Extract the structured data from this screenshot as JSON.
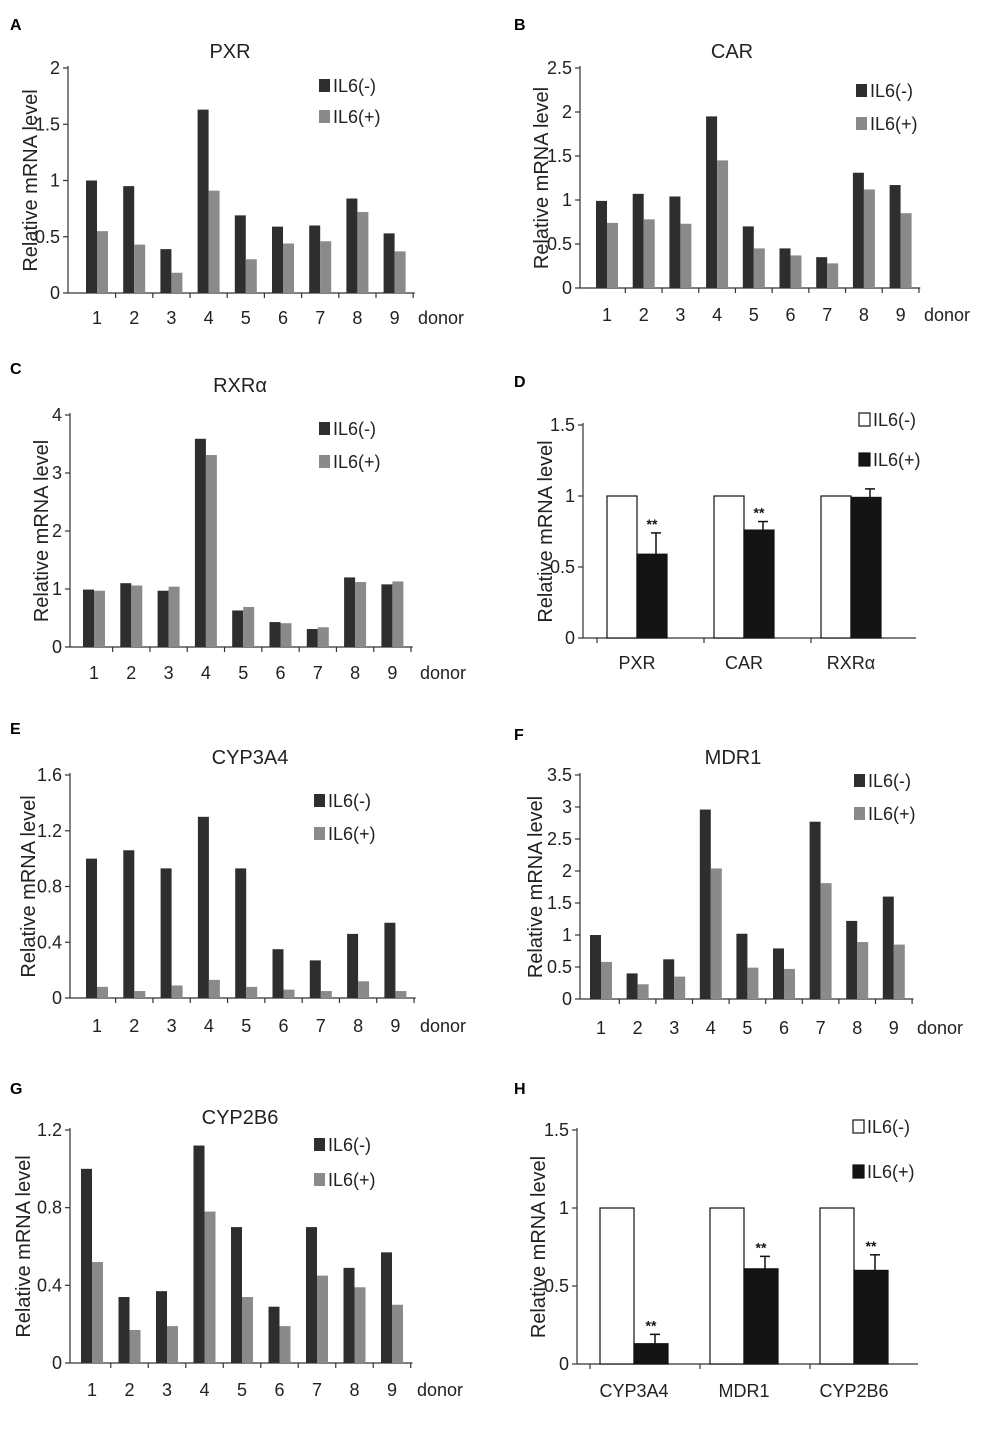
{
  "colors": {
    "il6_minus": "#2e2e2e",
    "il6_plus": "#8a8a8a",
    "summary_minus": "#ffffff",
    "summary_plus": "#141414",
    "axis": "#333333"
  },
  "chart_data": [
    {
      "panel": "A",
      "type": "bar",
      "title": "PXR",
      "xlabel": "donor",
      "ylabel": "Relative mRNA level",
      "ylim": [
        0,
        2
      ],
      "yticks": [
        "0",
        "0.5",
        "1",
        "1.5",
        "2"
      ],
      "categories": [
        "1",
        "2",
        "3",
        "4",
        "5",
        "6",
        "7",
        "8",
        "9"
      ],
      "series": [
        {
          "name": "IL6(-)",
          "values": [
            1.0,
            0.95,
            0.39,
            1.63,
            0.69,
            0.59,
            0.6,
            0.84,
            0.53
          ]
        },
        {
          "name": "IL6(+)",
          "values": [
            0.55,
            0.43,
            0.18,
            0.91,
            0.3,
            0.44,
            0.46,
            0.72,
            0.37
          ]
        }
      ],
      "legend": [
        "IL6(-)",
        "IL6(+)"
      ]
    },
    {
      "panel": "B",
      "type": "bar",
      "title": "CAR",
      "xlabel": "donor",
      "ylabel": "Relative mRNA level",
      "ylim": [
        0,
        2.5
      ],
      "yticks": [
        "0",
        "0.5",
        "1",
        "1.5",
        "2",
        "2.5"
      ],
      "categories": [
        "1",
        "2",
        "3",
        "4",
        "5",
        "6",
        "7",
        "8",
        "9"
      ],
      "series": [
        {
          "name": "IL6(-)",
          "values": [
            0.99,
            1.07,
            1.04,
            1.95,
            0.7,
            0.45,
            0.35,
            1.31,
            1.17
          ]
        },
        {
          "name": "IL6(+)",
          "values": [
            0.74,
            0.78,
            0.73,
            1.45,
            0.45,
            0.37,
            0.28,
            1.12,
            0.85
          ]
        }
      ],
      "legend": [
        "IL6(-)",
        "IL6(+)"
      ]
    },
    {
      "panel": "C",
      "type": "bar",
      "title": "RXRα",
      "xlabel": "donor",
      "ylabel": "Relative mRNA level",
      "ylim": [
        0,
        4
      ],
      "yticks": [
        "0",
        "1",
        "2",
        "3",
        "4"
      ],
      "categories": [
        "1",
        "2",
        "3",
        "4",
        "5",
        "6",
        "7",
        "8",
        "9"
      ],
      "series": [
        {
          "name": "IL6(-)",
          "values": [
            0.99,
            1.1,
            0.97,
            3.59,
            0.63,
            0.43,
            0.31,
            1.2,
            1.08
          ]
        },
        {
          "name": "IL6(+)",
          "values": [
            0.97,
            1.06,
            1.04,
            3.31,
            0.69,
            0.41,
            0.34,
            1.12,
            1.13
          ]
        }
      ],
      "legend": [
        "IL6(-)",
        "IL6(+)"
      ]
    },
    {
      "panel": "D",
      "type": "bar",
      "title": "",
      "xlabel": "",
      "ylabel": "Relative mRNA level",
      "ylim": [
        0,
        1.5
      ],
      "yticks": [
        "0",
        "0.5",
        "1",
        "1.5"
      ],
      "categories": [
        "PXR",
        "CAR",
        "RXRα"
      ],
      "series": [
        {
          "name": "IL6(-)",
          "values": [
            1.0,
            1.0,
            1.0
          ]
        },
        {
          "name": "IL6(+)",
          "values": [
            0.59,
            0.76,
            0.99
          ],
          "errors": [
            0.15,
            0.06,
            0.06
          ]
        }
      ],
      "annotations": [
        "**",
        "**",
        ""
      ],
      "legend": [
        "IL6(-)",
        "IL6(+)"
      ]
    },
    {
      "panel": "E",
      "type": "bar",
      "title": "CYP3A4",
      "xlabel": "donor",
      "ylabel": "Relative mRNA level",
      "ylim": [
        0,
        1.6
      ],
      "yticks": [
        "0",
        "0.4",
        "0.8",
        "1.2",
        "1.6"
      ],
      "categories": [
        "1",
        "2",
        "3",
        "4",
        "5",
        "6",
        "7",
        "8",
        "9"
      ],
      "series": [
        {
          "name": "IL6(-)",
          "values": [
            1.0,
            1.06,
            0.93,
            1.3,
            0.93,
            0.35,
            0.27,
            0.46,
            0.54
          ]
        },
        {
          "name": "IL6(+)",
          "values": [
            0.08,
            0.05,
            0.09,
            0.13,
            0.08,
            0.06,
            0.05,
            0.12,
            0.05
          ]
        }
      ],
      "legend": [
        "IL6(-)",
        "IL6(+)"
      ]
    },
    {
      "panel": "F",
      "type": "bar",
      "title": "MDR1",
      "xlabel": "donor",
      "ylabel": "Relative mRNA level",
      "ylim": [
        0,
        3.5
      ],
      "yticks": [
        "0",
        "0.5",
        "1",
        "1.5",
        "2",
        "2.5",
        "3",
        "3.5"
      ],
      "categories": [
        "1",
        "2",
        "3",
        "4",
        "5",
        "6",
        "7",
        "8",
        "9"
      ],
      "series": [
        {
          "name": "IL6(-)",
          "values": [
            1.0,
            0.4,
            0.62,
            2.96,
            1.02,
            0.79,
            2.77,
            1.22,
            1.6
          ]
        },
        {
          "name": "IL6(+)",
          "values": [
            0.58,
            0.23,
            0.35,
            2.04,
            0.49,
            0.47,
            1.81,
            0.89,
            0.85
          ]
        }
      ],
      "legend": [
        "IL6(-)",
        "IL6(+)"
      ]
    },
    {
      "panel": "G",
      "type": "bar",
      "title": "CYP2B6",
      "xlabel": "donor",
      "ylabel": "Relative mRNA level",
      "ylim": [
        0,
        1.2
      ],
      "yticks": [
        "0",
        "0.4",
        "0.8",
        "1.2"
      ],
      "categories": [
        "1",
        "2",
        "3",
        "4",
        "5",
        "6",
        "7",
        "8",
        "9"
      ],
      "series": [
        {
          "name": "IL6(-)",
          "values": [
            1.0,
            0.34,
            0.37,
            1.12,
            0.7,
            0.29,
            0.7,
            0.49,
            0.57
          ]
        },
        {
          "name": "IL6(+)",
          "values": [
            0.52,
            0.17,
            0.19,
            0.78,
            0.34,
            0.19,
            0.45,
            0.39,
            0.3
          ]
        }
      ],
      "legend": [
        "IL6(-)",
        "IL6(+)"
      ]
    },
    {
      "panel": "H",
      "type": "bar",
      "title": "",
      "xlabel": "",
      "ylabel": "Relative mRNA level",
      "ylim": [
        0,
        1.5
      ],
      "yticks": [
        "0",
        "0.5",
        "1",
        "1.5"
      ],
      "categories": [
        "CYP3A4",
        "MDR1",
        "CYP2B6"
      ],
      "series": [
        {
          "name": "IL6(-)",
          "values": [
            1.0,
            1.0,
            1.0
          ]
        },
        {
          "name": "IL6(+)",
          "values": [
            0.13,
            0.61,
            0.6
          ],
          "errors": [
            0.06,
            0.08,
            0.1
          ]
        }
      ],
      "annotations": [
        "**",
        "**",
        "**"
      ],
      "legend": [
        "IL6(-)",
        "IL6(+)"
      ]
    }
  ]
}
